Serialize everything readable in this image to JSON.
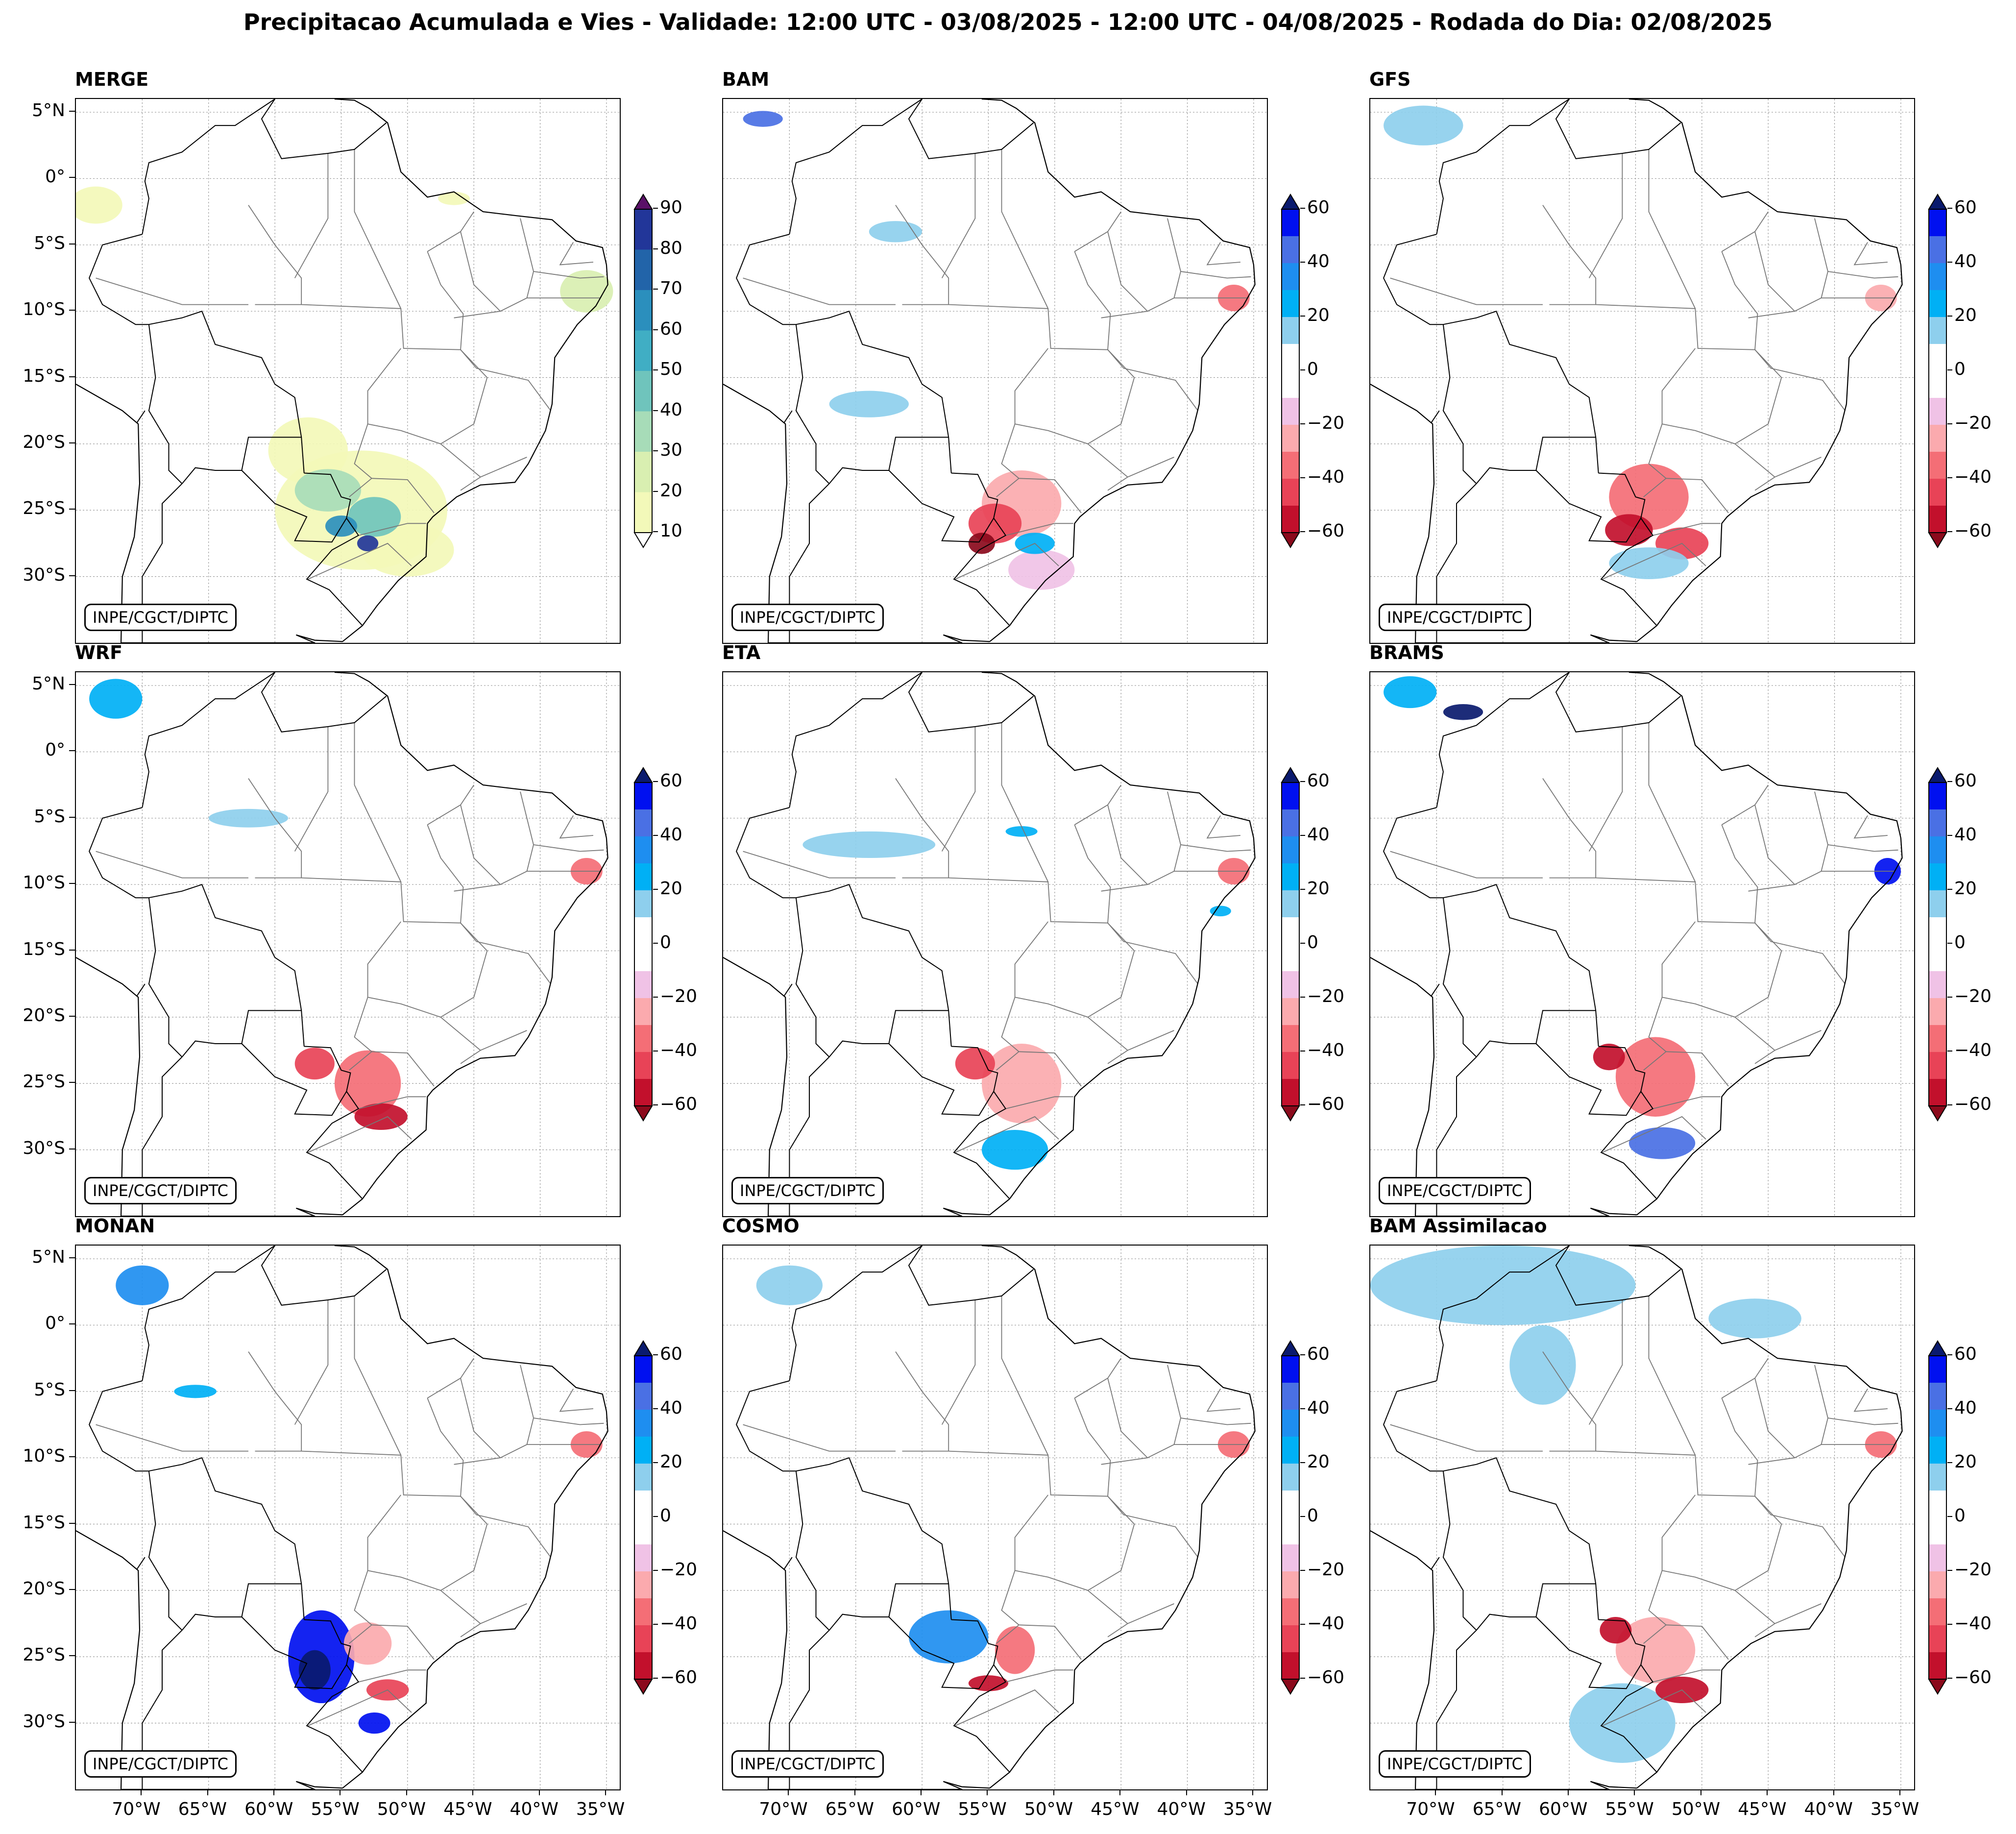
{
  "title": "Precipitacao Acumulada e Vies - Validade: 12:00 UTC - 03/08/2025 - 12:00 UTC - 04/08/2025 - Rodada do Dia: 02/08/2025",
  "credit": "INPE/CGCT/DIPTC",
  "lat_labels": [
    "5°N",
    "0°",
    "5°S",
    "10°S",
    "15°S",
    "20°S",
    "25°S",
    "30°S"
  ],
  "lon_labels": [
    "70°W",
    "65°W",
    "60°W",
    "55°W",
    "50°W",
    "45°W",
    "40°W",
    "35°W"
  ],
  "extent": {
    "lon": [
      -75,
      -34
    ],
    "lat": [
      -35,
      6
    ]
  },
  "colors": {
    "precip": [
      "#f3f9b9",
      "#d9efb1",
      "#a7dcb8",
      "#6fc4bc",
      "#40aec4",
      "#2b8fbd",
      "#2264a9",
      "#223699",
      "#0f1f5c",
      "#5a1068"
    ],
    "bias": [
      "#8b0a1c",
      "#c2102c",
      "#e84357",
      "#f46e76",
      "#fbaaae",
      "#f0c2e6",
      "#ffffff",
      "#ffffff",
      "#8ecfed",
      "#00b0f5",
      "#1e8ef0",
      "#4a70e4",
      "#0010f0",
      "#0a1a6e"
    ]
  },
  "colorbars": {
    "precip": {
      "ticks": [
        "10",
        "20",
        "30",
        "40",
        "50",
        "60",
        "70",
        "80",
        "90"
      ]
    },
    "bias": {
      "ticks": [
        "60",
        "40",
        "20",
        "0",
        "−20",
        "−40",
        "−60"
      ]
    }
  },
  "panels": [
    {
      "id": "merge",
      "title": "MERGE",
      "type": "precip"
    },
    {
      "id": "bam",
      "title": "BAM",
      "type": "bias"
    },
    {
      "id": "gfs",
      "title": "GFS",
      "type": "bias"
    },
    {
      "id": "wrf",
      "title": "WRF",
      "type": "bias"
    },
    {
      "id": "eta",
      "title": "ETA",
      "type": "bias"
    },
    {
      "id": "brams",
      "title": "BRAMS",
      "type": "bias"
    },
    {
      "id": "monan",
      "title": "MONAN",
      "type": "bias"
    },
    {
      "id": "cosmo",
      "title": "COSMO",
      "type": "bias"
    },
    {
      "id": "bam-assimilacao",
      "title": "BAM Assimilacao",
      "type": "bias"
    }
  ],
  "precip_fields": {
    "merge": [
      {
        "lon": -53.5,
        "lat": -25.0,
        "rx": 6.5,
        "ry": 4.5,
        "lvl": 0
      },
      {
        "lon": -57.5,
        "lat": -20.5,
        "rx": 3.0,
        "ry": 2.5,
        "lvl": 0
      },
      {
        "lon": -50.0,
        "lat": -28.0,
        "rx": 3.5,
        "ry": 2.0,
        "lvl": 0
      },
      {
        "lon": -56.0,
        "lat": -23.5,
        "rx": 2.5,
        "ry": 1.6,
        "lvl": 2
      },
      {
        "lon": -52.5,
        "lat": -25.5,
        "rx": 2.0,
        "ry": 1.5,
        "lvl": 3
      },
      {
        "lon": -55.0,
        "lat": -26.2,
        "rx": 1.2,
        "ry": 0.8,
        "lvl": 5
      },
      {
        "lon": -53.0,
        "lat": -27.5,
        "rx": 0.8,
        "ry": 0.6,
        "lvl": 7
      },
      {
        "lon": -36.5,
        "lat": -8.5,
        "rx": 2.0,
        "ry": 1.6,
        "lvl": 1
      },
      {
        "lon": -73.5,
        "lat": -2.0,
        "rx": 2.0,
        "ry": 1.4,
        "lvl": 0
      },
      {
        "lon": -46.5,
        "lat": -1.5,
        "rx": 1.2,
        "ry": 0.5,
        "lvl": 0
      }
    ]
  },
  "bias_fields": {
    "bam": [
      {
        "lon": -52.5,
        "lat": -24.5,
        "rx": 3.0,
        "ry": 2.5,
        "lvl": 4
      },
      {
        "lon": -54.5,
        "lat": -26.0,
        "rx": 2.0,
        "ry": 1.5,
        "lvl": 2
      },
      {
        "lon": -55.5,
        "lat": -27.5,
        "rx": 1.0,
        "ry": 0.8,
        "lvl": 0
      },
      {
        "lon": -51.0,
        "lat": -29.5,
        "rx": 2.5,
        "ry": 1.5,
        "lvl": 5
      },
      {
        "lon": -51.5,
        "lat": -27.5,
        "rx": 1.5,
        "ry": 0.8,
        "lvl": 9
      },
      {
        "lon": -64.0,
        "lat": -17.0,
        "rx": 3.0,
        "ry": 1.0,
        "lvl": 8
      },
      {
        "lon": -62.0,
        "lat": -4.0,
        "rx": 2.0,
        "ry": 0.8,
        "lvl": 8
      },
      {
        "lon": -72.0,
        "lat": 4.5,
        "rx": 1.5,
        "ry": 0.6,
        "lvl": 11
      },
      {
        "lon": -36.5,
        "lat": -9.0,
        "rx": 1.2,
        "ry": 1.0,
        "lvl": 3
      }
    ],
    "gfs": [
      {
        "lon": -54.0,
        "lat": -24.0,
        "rx": 3.0,
        "ry": 2.5,
        "lvl": 3
      },
      {
        "lon": -55.5,
        "lat": -26.5,
        "rx": 1.8,
        "ry": 1.2,
        "lvl": 1
      },
      {
        "lon": -51.5,
        "lat": -27.5,
        "rx": 2.0,
        "ry": 1.2,
        "lvl": 2
      },
      {
        "lon": -54.0,
        "lat": -29.0,
        "rx": 3.0,
        "ry": 1.2,
        "lvl": 8
      },
      {
        "lon": -71.0,
        "lat": 4.0,
        "rx": 3.0,
        "ry": 1.5,
        "lvl": 8
      },
      {
        "lon": -36.5,
        "lat": -9.0,
        "rx": 1.2,
        "ry": 1.0,
        "lvl": 4
      }
    ],
    "wrf": [
      {
        "lon": -53.0,
        "lat": -25.0,
        "rx": 2.5,
        "ry": 2.5,
        "lvl": 3
      },
      {
        "lon": -57.0,
        "lat": -23.5,
        "rx": 1.5,
        "ry": 1.2,
        "lvl": 2
      },
      {
        "lon": -52.0,
        "lat": -27.5,
        "rx": 2.0,
        "ry": 1.0,
        "lvl": 1
      },
      {
        "lon": -62.0,
        "lat": -5.0,
        "rx": 3.0,
        "ry": 0.7,
        "lvl": 8
      },
      {
        "lon": -72.0,
        "lat": 4.0,
        "rx": 2.0,
        "ry": 1.5,
        "lvl": 9
      },
      {
        "lon": -36.5,
        "lat": -9.0,
        "rx": 1.2,
        "ry": 1.0,
        "lvl": 3
      }
    ],
    "eta": [
      {
        "lon": -52.5,
        "lat": -25.0,
        "rx": 3.0,
        "ry": 3.0,
        "lvl": 4
      },
      {
        "lon": -56.0,
        "lat": -23.5,
        "rx": 1.5,
        "ry": 1.2,
        "lvl": 2
      },
      {
        "lon": -53.0,
        "lat": -30.0,
        "rx": 2.5,
        "ry": 1.5,
        "lvl": 9
      },
      {
        "lon": -64.0,
        "lat": -7.0,
        "rx": 5.0,
        "ry": 1.0,
        "lvl": 8
      },
      {
        "lon": -52.5,
        "lat": -6.0,
        "rx": 1.2,
        "ry": 0.4,
        "lvl": 9
      },
      {
        "lon": -37.5,
        "lat": -12.0,
        "rx": 0.8,
        "ry": 0.4,
        "lvl": 9
      },
      {
        "lon": -36.5,
        "lat": -9.0,
        "rx": 1.2,
        "ry": 1.0,
        "lvl": 3
      }
    ],
    "brams": [
      {
        "lon": -53.5,
        "lat": -24.5,
        "rx": 3.0,
        "ry": 3.0,
        "lvl": 3
      },
      {
        "lon": -57.0,
        "lat": -23.0,
        "rx": 1.2,
        "ry": 1.0,
        "lvl": 1
      },
      {
        "lon": -53.0,
        "lat": -29.5,
        "rx": 2.5,
        "ry": 1.2,
        "lvl": 11
      },
      {
        "lon": -36.0,
        "lat": -9.0,
        "rx": 1.0,
        "ry": 1.0,
        "lvl": 12
      },
      {
        "lon": -68.0,
        "lat": 3.0,
        "rx": 1.5,
        "ry": 0.6,
        "lvl": 13
      },
      {
        "lon": -72.0,
        "lat": 4.5,
        "rx": 2.0,
        "ry": 1.2,
        "lvl": 9
      }
    ],
    "monan": [
      {
        "lon": -56.5,
        "lat": -25.0,
        "rx": 2.5,
        "ry": 3.5,
        "lvl": 12
      },
      {
        "lon": -57.0,
        "lat": -26.0,
        "rx": 1.2,
        "ry": 1.5,
        "lvl": 13
      },
      {
        "lon": -53.0,
        "lat": -24.0,
        "rx": 1.8,
        "ry": 1.6,
        "lvl": 4
      },
      {
        "lon": -51.5,
        "lat": -27.5,
        "rx": 1.6,
        "ry": 0.8,
        "lvl": 2
      },
      {
        "lon": -52.5,
        "lat": -30.0,
        "rx": 1.2,
        "ry": 0.8,
        "lvl": 12
      },
      {
        "lon": -70.0,
        "lat": 3.0,
        "rx": 2.0,
        "ry": 1.5,
        "lvl": 10
      },
      {
        "lon": -66.0,
        "lat": -5.0,
        "rx": 1.6,
        "ry": 0.5,
        "lvl": 9
      },
      {
        "lon": -36.5,
        "lat": -9.0,
        "rx": 1.2,
        "ry": 1.0,
        "lvl": 3
      }
    ],
    "cosmo": [
      {
        "lon": -58.0,
        "lat": -23.5,
        "rx": 3.0,
        "ry": 2.0,
        "lvl": 10
      },
      {
        "lon": -53.0,
        "lat": -24.5,
        "rx": 1.5,
        "ry": 1.8,
        "lvl": 3
      },
      {
        "lon": -55.0,
        "lat": -27.0,
        "rx": 1.5,
        "ry": 0.6,
        "lvl": 1
      },
      {
        "lon": -70.0,
        "lat": 3.0,
        "rx": 2.5,
        "ry": 1.5,
        "lvl": 8
      },
      {
        "lon": -36.5,
        "lat": -9.0,
        "rx": 1.2,
        "ry": 1.0,
        "lvl": 3
      }
    ],
    "bam-assimilacao": [
      {
        "lon": -65.0,
        "lat": 3.0,
        "rx": 10.0,
        "ry": 3.0,
        "lvl": 8
      },
      {
        "lon": -62.0,
        "lat": -3.0,
        "rx": 2.5,
        "ry": 3.0,
        "lvl": 8
      },
      {
        "lon": -46.0,
        "lat": 0.5,
        "rx": 3.5,
        "ry": 1.5,
        "lvl": 8
      },
      {
        "lon": -56.0,
        "lat": -30.0,
        "rx": 4.0,
        "ry": 3.0,
        "lvl": 8
      },
      {
        "lon": -53.5,
        "lat": -24.5,
        "rx": 3.0,
        "ry": 2.5,
        "lvl": 4
      },
      {
        "lon": -56.5,
        "lat": -23.0,
        "rx": 1.2,
        "ry": 1.0,
        "lvl": 1
      },
      {
        "lon": -51.5,
        "lat": -27.5,
        "rx": 2.0,
        "ry": 1.0,
        "lvl": 1
      },
      {
        "lon": -36.5,
        "lat": -9.0,
        "rx": 1.2,
        "ry": 1.0,
        "lvl": 3
      }
    ]
  },
  "geography": {
    "coast": [
      [
        -75,
        -15.5
      ],
      [
        -71.5,
        -17.5
      ],
      [
        -70.3,
        -18.5
      ],
      [
        -70.2,
        -23
      ],
      [
        -70.6,
        -27
      ],
      [
        -71.5,
        -30
      ],
      [
        -71.6,
        -35
      ],
      [
        -57.2,
        -35
      ],
      [
        -56.8,
        -36
      ],
      [
        -57,
        -35
      ],
      [
        -58.4,
        -34.4
      ],
      [
        -57,
        -34.8
      ],
      [
        -54.9,
        -34.9
      ],
      [
        -53.4,
        -33.7
      ],
      [
        -52.3,
        -32.2
      ],
      [
        -50.7,
        -30.3
      ],
      [
        -48.6,
        -28.5
      ],
      [
        -48.5,
        -26
      ],
      [
        -48.1,
        -25.5
      ],
      [
        -46.3,
        -24
      ],
      [
        -44.5,
        -23.1
      ],
      [
        -41.9,
        -22.9
      ],
      [
        -40.9,
        -21.5
      ],
      [
        -39.6,
        -19
      ],
      [
        -39.1,
        -17
      ],
      [
        -38.9,
        -13.5
      ],
      [
        -38.5,
        -12.9
      ],
      [
        -37.2,
        -11
      ],
      [
        -35.8,
        -9.6
      ],
      [
        -34.9,
        -8
      ],
      [
        -35,
        -6.5
      ],
      [
        -35.3,
        -5.2
      ],
      [
        -37.3,
        -4.7
      ],
      [
        -39.1,
        -3.1
      ],
      [
        -41.8,
        -2.8
      ],
      [
        -44.3,
        -2.5
      ],
      [
        -46.5,
        -1
      ],
      [
        -48.5,
        -1.4
      ],
      [
        -50.5,
        0.5
      ],
      [
        -51.5,
        4.2
      ],
      [
        -52.9,
        5.3
      ],
      [
        -54,
        5.9
      ],
      [
        -55.5,
        6
      ]
    ],
    "borders_major": [
      [
        [
          -60,
          6
        ],
        [
          -61,
          4.5
        ],
        [
          -60,
          2.5
        ],
        [
          -59.5,
          1.5
        ],
        [
          -56,
          1.9
        ],
        [
          -54,
          2.2
        ],
        [
          -51.6,
          4.2
        ]
      ],
      [
        [
          -60,
          6
        ],
        [
          -63,
          4
        ],
        [
          -64.5,
          4
        ],
        [
          -67,
          2
        ],
        [
          -69.5,
          1.2
        ],
        [
          -69.8,
          -0.2
        ],
        [
          -69.5,
          -1.5
        ],
        [
          -70,
          -4.2
        ]
      ],
      [
        [
          -70,
          -4.2
        ],
        [
          -73,
          -5
        ],
        [
          -74,
          -7.5
        ],
        [
          -73,
          -9.5
        ],
        [
          -70.5,
          -11
        ],
        [
          -69.5,
          -11
        ]
      ],
      [
        [
          -69.5,
          -11
        ],
        [
          -67,
          -10.5
        ],
        [
          -65.5,
          -10
        ],
        [
          -64.5,
          -12.5
        ],
        [
          -61,
          -13.5
        ],
        [
          -60,
          -15.5
        ],
        [
          -58.5,
          -16.5
        ],
        [
          -58,
          -19.5
        ],
        [
          -57.8,
          -22.2
        ]
      ],
      [
        [
          -57.8,
          -22.2
        ],
        [
          -55.8,
          -22.3
        ],
        [
          -55,
          -24
        ],
        [
          -54.3,
          -24.2
        ],
        [
          -54.6,
          -25.6
        ],
        [
          -53.7,
          -26.9
        ],
        [
          -55.7,
          -28
        ],
        [
          -57.6,
          -30.2
        ],
        [
          -55.9,
          -31
        ],
        [
          -53.4,
          -33.7
        ]
      ],
      [
        [
          -58,
          -19.5
        ],
        [
          -62,
          -19.5
        ],
        [
          -62.5,
          -22
        ],
        [
          -60,
          -24.5
        ],
        [
          -57.6,
          -25.5
        ],
        [
          -58.5,
          -27.3
        ],
        [
          -55.7,
          -27.4
        ],
        [
          -54.6,
          -25.6
        ]
      ],
      [
        [
          -69.5,
          -11
        ],
        [
          -69,
          -15
        ],
        [
          -69.5,
          -17.5
        ],
        [
          -68,
          -20
        ],
        [
          -68,
          -22
        ],
        [
          -67,
          -23
        ]
      ],
      [
        [
          -69.8,
          -17.5
        ],
        [
          -70.4,
          -18.4
        ]
      ],
      [
        [
          -67,
          -23
        ],
        [
          -68.5,
          -24.5
        ],
        [
          -68.5,
          -27.5
        ],
        [
          -70,
          -30
        ],
        [
          -70,
          -33
        ],
        [
          -70,
          -35
        ]
      ],
      [
        [
          -62.5,
          -22
        ],
        [
          -64.5,
          -22
        ],
        [
          -66,
          -21.8
        ],
        [
          -67,
          -23
        ]
      ]
    ],
    "borders_states": [
      [
        [
          -62,
          -2
        ],
        [
          -60,
          -5
        ],
        [
          -58,
          -7.5
        ],
        [
          -58,
          -9.5
        ],
        [
          -61.5,
          -9.5
        ]
      ],
      [
        [
          -73.5,
          -7.5
        ],
        [
          -67,
          -9.5
        ],
        [
          -62,
          -9.5
        ]
      ],
      [
        [
          -58,
          -9.5
        ],
        [
          -50.5,
          -9.8
        ],
        [
          -50.3,
          -12.8
        ],
        [
          -46,
          -12.9
        ],
        [
          -45.8,
          -10.2
        ],
        [
          -47.5,
          -8
        ],
        [
          -48.5,
          -5.5
        ]
      ],
      [
        [
          -56,
          1.9
        ],
        [
          -56,
          -3
        ],
        [
          -58.5,
          -7.5
        ]
      ],
      [
        [
          -54,
          2.2
        ],
        [
          -54,
          -2.5
        ],
        [
          -50.5,
          -9.8
        ]
      ],
      [
        [
          -50.5,
          -12.8
        ],
        [
          -53,
          -16
        ],
        [
          -53,
          -18.5
        ],
        [
          -50.5,
          -19
        ],
        [
          -47.5,
          -20
        ],
        [
          -45,
          -18.5
        ],
        [
          -44,
          -15
        ],
        [
          -46,
          -12.9
        ]
      ],
      [
        [
          -53,
          -18.5
        ],
        [
          -54,
          -21.5
        ],
        [
          -52.7,
          -22.6
        ],
        [
          -54.4,
          -24
        ]
      ],
      [
        [
          -52.7,
          -22.6
        ],
        [
          -50,
          -22.7
        ],
        [
          -48,
          -25.2
        ]
      ],
      [
        [
          -53.7,
          -26.9
        ],
        [
          -50,
          -26
        ],
        [
          -48.6,
          -26
        ]
      ],
      [
        [
          -57.5,
          -30.2
        ],
        [
          -51.5,
          -27.5
        ],
        [
          -49.7,
          -29.2
        ]
      ],
      [
        [
          -46,
          -12.9
        ],
        [
          -44.8,
          -14.3
        ],
        [
          -40.9,
          -15.2
        ],
        [
          -39.2,
          -17.5
        ]
      ],
      [
        [
          -47.5,
          -20
        ],
        [
          -44.5,
          -22.5
        ],
        [
          -41,
          -21
        ]
      ],
      [
        [
          -44.5,
          -22.5
        ],
        [
          -46,
          -23.5
        ]
      ],
      [
        [
          -48.5,
          -5.5
        ],
        [
          -46,
          -4
        ],
        [
          -45,
          -2.5
        ]
      ],
      [
        [
          -46,
          -4
        ],
        [
          -45,
          -8
        ],
        [
          -43,
          -10
        ],
        [
          -41,
          -9
        ],
        [
          -40.5,
          -7
        ],
        [
          -41.5,
          -3
        ]
      ],
      [
        [
          -40.5,
          -7
        ],
        [
          -37,
          -7.5
        ],
        [
          -35.2,
          -7.4
        ]
      ],
      [
        [
          -41,
          -9
        ],
        [
          -37,
          -9
        ],
        [
          -35.5,
          -9
        ]
      ],
      [
        [
          -37.5,
          -4.8
        ],
        [
          -38.5,
          -6.5
        ],
        [
          -36,
          -6.3
        ]
      ],
      [
        [
          -43,
          -10
        ],
        [
          -46.5,
          -10.5
        ]
      ]
    ]
  }
}
